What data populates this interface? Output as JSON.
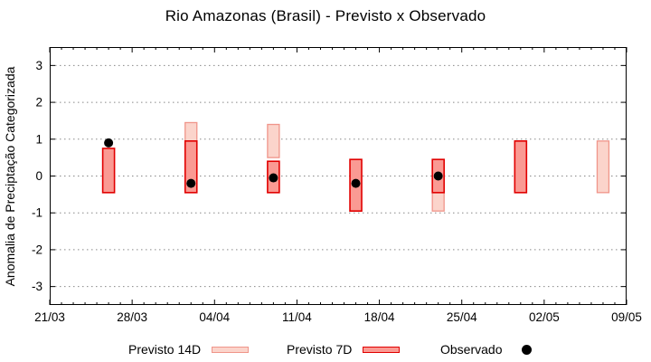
{
  "title": "Rio Amazonas (Brasil) - Previsto x Observado",
  "chart": {
    "ylabel": "Anomalia de Preciptação Categorizada",
    "colors": {
      "previsto14d_fill": "#fbd4cb",
      "previsto14d_border": "#f0958a",
      "previsto7d_fill": "#fa9a93",
      "previsto7d_border": "#e10000",
      "observado": "#000000",
      "grid": "#888888",
      "frame": "#000000"
    }
  },
  "chart_data": {
    "type": "bar",
    "title": "Rio Amazonas (Brasil) - Previsto x Observado",
    "xlabel": "",
    "ylabel": "Anomalia de Preciptação Categorizada",
    "ylim": [
      -3.5,
      3.5
    ],
    "yticks": [
      3,
      2,
      1,
      0,
      -1,
      -2,
      -3
    ],
    "xtick_labels": [
      "21/03",
      "28/03",
      "04/04",
      "11/04",
      "18/04",
      "25/04",
      "02/05",
      "09/05"
    ],
    "x_axis": {
      "start_label": "21/03",
      "end_label": "09/05",
      "total_days": 49,
      "minor_tick_every_days": 1,
      "major_tick_every_days": 7
    },
    "grid": "horizontal-dotted",
    "legend_position": "below-plot",
    "series": [
      {
        "name": "Previsto 14D",
        "style": "range-bar-light",
        "points": [
          {
            "date": "02/04",
            "low": 0.95,
            "high": 1.45
          },
          {
            "date": "09/04",
            "low": 0.5,
            "high": 1.4
          },
          {
            "date": "23/04",
            "low": -0.95,
            "high": -0.45
          },
          {
            "date": "07/05",
            "low": -0.45,
            "high": 0.95
          }
        ]
      },
      {
        "name": "Previsto 7D",
        "style": "range-bar-dark",
        "points": [
          {
            "date": "26/03",
            "low": -0.45,
            "high": 0.75
          },
          {
            "date": "02/04",
            "low": -0.45,
            "high": 0.95
          },
          {
            "date": "09/04",
            "low": -0.45,
            "high": 0.4
          },
          {
            "date": "16/04",
            "low": -0.95,
            "high": 0.45
          },
          {
            "date": "23/04",
            "low": -0.45,
            "high": 0.45
          },
          {
            "date": "30/04",
            "low": -0.45,
            "high": 0.95
          }
        ]
      },
      {
        "name": "Observado",
        "style": "scatter-dot",
        "points": [
          {
            "date": "26/03",
            "value": 0.9
          },
          {
            "date": "02/04",
            "value": -0.2
          },
          {
            "date": "09/04",
            "value": -0.05
          },
          {
            "date": "16/04",
            "value": -0.2
          },
          {
            "date": "23/04",
            "value": 0.0
          }
        ]
      }
    ]
  },
  "legend": {
    "items": [
      {
        "label": "Previsto 14D",
        "swatch": "box-light"
      },
      {
        "label": "Previsto 7D",
        "swatch": "box-dark"
      },
      {
        "label": "Observado",
        "swatch": "dot"
      }
    ]
  }
}
